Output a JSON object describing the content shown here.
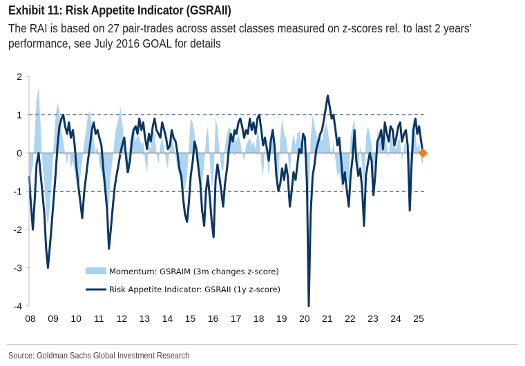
{
  "header": {
    "title": "Exhibit 11: Risk Appetite Indicator (GSRAII)",
    "subtitle_lines": [
      "The RAI is based on 27 pair-trades across asset classes measured on z-scores rel. to last 2 years’",
      "performance, see July 2016 GOAL for details"
    ]
  },
  "footer": {
    "source": "Source: Goldman Sachs Global Investment Research"
  },
  "colors": {
    "rai_line": "#0b3562",
    "momentum_fill": "#a9d2ef",
    "latest_marker": "#f47c20",
    "reference_dash": "#3f6b8f",
    "zero_line": "#9a9a9a",
    "axis": "#bdbdbd"
  },
  "chart_data": {
    "type": "line",
    "title": "Exhibit 11: Risk Appetite Indicator (GSRAII)",
    "xlabel": "",
    "ylabel": "",
    "ylim": [
      -4,
      2
    ],
    "xlim": [
      2008.0,
      2025.3
    ],
    "yticks": [
      "2",
      "1",
      "0",
      "-1",
      "-2",
      "-3",
      "-4"
    ],
    "ytick_values": [
      2,
      1,
      0,
      -1,
      -2,
      -3,
      -4
    ],
    "xticks": [
      "08",
      "09",
      "10",
      "11",
      "12",
      "13",
      "14",
      "15",
      "16",
      "17",
      "18",
      "19",
      "20",
      "21",
      "22",
      "23",
      "24",
      "25"
    ],
    "xtick_values": [
      2008,
      2009,
      2010,
      2011,
      2012,
      2013,
      2014,
      2015,
      2016,
      2017,
      2018,
      2019,
      2020,
      2021,
      2022,
      2023,
      2024,
      2025
    ],
    "reference_lines": [
      1,
      -1
    ],
    "zero_line": 0,
    "grid": false,
    "legend": {
      "placement": "bottom-center",
      "entries": [
        {
          "label": "Momentum: GSRAIM (3m changes z-score)",
          "kind": "area"
        },
        {
          "label": "Risk Appetite Indicator: GSRAII (1y z-score)",
          "kind": "line"
        }
      ]
    },
    "latest_point": {
      "x": 2025.25,
      "y": 0.0,
      "marker": "diamond"
    },
    "series": [
      {
        "name": "Risk Appetite Indicator: GSRAII (1y z-score)",
        "kind": "line",
        "x": [
          2008.0,
          2008.08,
          2008.17,
          2008.25,
          2008.33,
          2008.42,
          2008.5,
          2008.58,
          2008.67,
          2008.75,
          2008.83,
          2008.92,
          2009.0,
          2009.08,
          2009.17,
          2009.25,
          2009.33,
          2009.42,
          2009.5,
          2009.58,
          2009.67,
          2009.75,
          2009.83,
          2009.92,
          2010.0,
          2010.08,
          2010.17,
          2010.25,
          2010.33,
          2010.42,
          2010.5,
          2010.58,
          2010.67,
          2010.75,
          2010.83,
          2010.92,
          2011.0,
          2011.08,
          2011.17,
          2011.25,
          2011.33,
          2011.42,
          2011.5,
          2011.58,
          2011.67,
          2011.75,
          2011.83,
          2011.92,
          2012.0,
          2012.08,
          2012.17,
          2012.25,
          2012.33,
          2012.42,
          2012.5,
          2012.58,
          2012.67,
          2012.75,
          2012.83,
          2012.92,
          2013.0,
          2013.08,
          2013.17,
          2013.25,
          2013.33,
          2013.42,
          2013.5,
          2013.58,
          2013.67,
          2013.75,
          2013.83,
          2013.92,
          2014.0,
          2014.08,
          2014.17,
          2014.25,
          2014.33,
          2014.42,
          2014.5,
          2014.58,
          2014.67,
          2014.75,
          2014.83,
          2014.92,
          2015.0,
          2015.08,
          2015.17,
          2015.25,
          2015.33,
          2015.42,
          2015.5,
          2015.58,
          2015.67,
          2015.75,
          2015.83,
          2015.92,
          2016.0,
          2016.08,
          2016.17,
          2016.25,
          2016.33,
          2016.42,
          2016.5,
          2016.58,
          2016.67,
          2016.75,
          2016.83,
          2016.92,
          2017.0,
          2017.08,
          2017.17,
          2017.25,
          2017.33,
          2017.42,
          2017.5,
          2017.58,
          2017.67,
          2017.75,
          2017.83,
          2017.92,
          2018.0,
          2018.08,
          2018.17,
          2018.25,
          2018.33,
          2018.42,
          2018.5,
          2018.58,
          2018.67,
          2018.75,
          2018.83,
          2018.92,
          2019.0,
          2019.08,
          2019.17,
          2019.25,
          2019.33,
          2019.42,
          2019.5,
          2019.58,
          2019.67,
          2019.75,
          2019.83,
          2019.92,
          2020.0,
          2020.08,
          2020.17,
          2020.25,
          2020.33,
          2020.42,
          2020.5,
          2020.58,
          2020.67,
          2020.75,
          2020.83,
          2020.92,
          2021.0,
          2021.08,
          2021.17,
          2021.25,
          2021.33,
          2021.42,
          2021.5,
          2021.58,
          2021.67,
          2021.75,
          2021.83,
          2021.92,
          2022.0,
          2022.08,
          2022.17,
          2022.25,
          2022.33,
          2022.42,
          2022.5,
          2022.58,
          2022.67,
          2022.75,
          2022.83,
          2022.92,
          2023.0,
          2023.08,
          2023.17,
          2023.25,
          2023.33,
          2023.42,
          2023.5,
          2023.58,
          2023.67,
          2023.75,
          2023.83,
          2023.92,
          2024.0,
          2024.08,
          2024.17,
          2024.25,
          2024.33,
          2024.42,
          2024.5,
          2024.58,
          2024.67,
          2024.75,
          2024.83,
          2024.92,
          2025.0,
          2025.08,
          2025.17,
          2025.25
        ],
        "y": [
          -0.6,
          -1.3,
          -2.0,
          -1.2,
          -0.3,
          0.0,
          -0.5,
          -1.0,
          -1.6,
          -2.5,
          -3.0,
          -2.4,
          -1.8,
          -1.2,
          -0.5,
          0.2,
          0.7,
          0.9,
          1.0,
          0.7,
          0.5,
          0.8,
          0.4,
          0.6,
          0.2,
          -0.4,
          -0.9,
          -1.3,
          -1.7,
          -1.0,
          -0.6,
          -0.2,
          0.2,
          0.6,
          0.8,
          0.5,
          0.6,
          0.4,
          0.2,
          -0.4,
          -0.9,
          -1.5,
          -2.5,
          -2.0,
          -1.4,
          -0.9,
          -0.6,
          -0.3,
          0.0,
          0.2,
          0.4,
          -0.1,
          -0.5,
          -0.2,
          0.3,
          0.6,
          0.7,
          0.5,
          0.9,
          0.6,
          0.8,
          0.4,
          0.1,
          0.5,
          0.3,
          0.7,
          0.9,
          0.6,
          0.5,
          0.4,
          0.8,
          0.6,
          0.4,
          0.1,
          0.2,
          0.6,
          0.4,
          0.3,
          0.0,
          -0.4,
          -0.6,
          -1.2,
          -1.6,
          -1.8,
          -1.3,
          -0.6,
          -0.2,
          0.3,
          0.1,
          -0.4,
          -0.8,
          -1.5,
          -1.9,
          -1.0,
          -0.6,
          -1.2,
          -1.8,
          -2.2,
          -0.7,
          -0.3,
          -0.6,
          -1.0,
          -1.4,
          -0.8,
          -0.4,
          0.1,
          0.5,
          0.3,
          0.6,
          0.5,
          0.8,
          0.9,
          0.7,
          0.4,
          0.6,
          0.5,
          0.9,
          0.6,
          0.8,
          0.5,
          0.9,
          1.0,
          0.6,
          0.2,
          0.4,
          0.1,
          -0.2,
          0.3,
          0.6,
          0.2,
          -0.6,
          -1.0,
          -0.8,
          -0.4,
          -0.7,
          -0.3,
          -0.6,
          -1.4,
          -1.0,
          -0.5,
          -0.7,
          -0.3,
          0.1,
          0.0,
          0.5,
          0.4,
          -0.8,
          -4.0,
          -1.6,
          -0.6,
          -0.3,
          0.1,
          0.3,
          0.5,
          0.6,
          0.9,
          1.2,
          1.5,
          1.2,
          0.9,
          1.0,
          0.6,
          0.2,
          0.4,
          -0.2,
          -0.8,
          -0.5,
          -1.0,
          -1.4,
          -0.6,
          -0.1,
          0.6,
          -0.2,
          -0.6,
          -0.4,
          -0.9,
          -1.9,
          -0.6,
          -0.3,
          0.0,
          -0.2,
          -1.1,
          -0.5,
          0.3,
          0.4,
          0.6,
          0.1,
          0.8,
          0.5,
          0.3,
          0.7,
          0.6,
          0.2,
          0.4,
          0.7,
          0.8,
          0.3,
          0.5,
          0.6,
          0.2,
          -1.5,
          -0.3,
          0.6,
          0.9,
          0.5,
          0.7,
          0.3,
          0.0
        ]
      },
      {
        "name": "Momentum: GSRAIM (3m changes z-score)",
        "kind": "area",
        "x": [
          2008.0,
          2008.08,
          2008.17,
          2008.25,
          2008.33,
          2008.42,
          2008.5,
          2008.58,
          2008.67,
          2008.75,
          2008.83,
          2008.92,
          2009.0,
          2009.08,
          2009.17,
          2009.25,
          2009.33,
          2009.42,
          2009.5,
          2009.58,
          2009.67,
          2009.75,
          2009.83,
          2009.92,
          2010.0,
          2010.08,
          2010.17,
          2010.25,
          2010.33,
          2010.42,
          2010.5,
          2010.58,
          2010.67,
          2010.75,
          2010.83,
          2010.92,
          2011.0,
          2011.08,
          2011.17,
          2011.25,
          2011.33,
          2011.42,
          2011.5,
          2011.58,
          2011.67,
          2011.75,
          2011.83,
          2011.92,
          2012.0,
          2012.08,
          2012.17,
          2012.25,
          2012.33,
          2012.42,
          2012.5,
          2012.58,
          2012.67,
          2012.75,
          2012.83,
          2012.92,
          2013.0,
          2013.08,
          2013.17,
          2013.25,
          2013.33,
          2013.42,
          2013.5,
          2013.58,
          2013.67,
          2013.75,
          2013.83,
          2013.92,
          2014.0,
          2014.08,
          2014.17,
          2014.25,
          2014.33,
          2014.42,
          2014.5,
          2014.58,
          2014.67,
          2014.75,
          2014.83,
          2014.92,
          2015.0,
          2015.08,
          2015.17,
          2015.25,
          2015.33,
          2015.42,
          2015.5,
          2015.58,
          2015.67,
          2015.75,
          2015.83,
          2015.92,
          2016.0,
          2016.08,
          2016.17,
          2016.25,
          2016.33,
          2016.42,
          2016.5,
          2016.58,
          2016.67,
          2016.75,
          2016.83,
          2016.92,
          2017.0,
          2017.08,
          2017.17,
          2017.25,
          2017.33,
          2017.42,
          2017.5,
          2017.58,
          2017.67,
          2017.75,
          2017.83,
          2017.92,
          2018.0,
          2018.08,
          2018.17,
          2018.25,
          2018.33,
          2018.42,
          2018.5,
          2018.58,
          2018.67,
          2018.75,
          2018.83,
          2018.92,
          2019.0,
          2019.08,
          2019.17,
          2019.25,
          2019.33,
          2019.42,
          2019.5,
          2019.58,
          2019.67,
          2019.75,
          2019.83,
          2019.92,
          2020.0,
          2020.08,
          2020.17,
          2020.25,
          2020.33,
          2020.42,
          2020.5,
          2020.58,
          2020.67,
          2020.75,
          2020.83,
          2020.92,
          2021.0,
          2021.08,
          2021.17,
          2021.25,
          2021.33,
          2021.42,
          2021.5,
          2021.58,
          2021.67,
          2021.75,
          2021.83,
          2021.92,
          2022.0,
          2022.08,
          2022.17,
          2022.25,
          2022.33,
          2022.42,
          2022.5,
          2022.58,
          2022.67,
          2022.75,
          2022.83,
          2022.92,
          2023.0,
          2023.08,
          2023.17,
          2023.25,
          2023.33,
          2023.42,
          2023.5,
          2023.58,
          2023.67,
          2023.75,
          2023.83,
          2023.92,
          2024.0,
          2024.08,
          2024.17,
          2024.25,
          2024.33,
          2024.42,
          2024.5,
          2024.58,
          2024.67,
          2024.75,
          2024.83,
          2024.92,
          2025.0,
          2025.08,
          2025.17,
          2025.25
        ],
        "y": [
          -0.8,
          -0.6,
          -0.3,
          0.5,
          1.4,
          1.7,
          0.8,
          -0.2,
          -0.8,
          -1.6,
          -1.9,
          -1.4,
          -0.6,
          0.2,
          1.0,
          1.3,
          1.1,
          0.6,
          0.3,
          0.0,
          -0.3,
          0.1,
          -0.4,
          -0.2,
          -0.5,
          -0.8,
          -1.0,
          -0.6,
          -0.2,
          0.3,
          0.6,
          1.0,
          1.1,
          0.7,
          0.4,
          0.0,
          0.2,
          -0.3,
          -0.5,
          -0.7,
          -1.2,
          -1.6,
          -1.3,
          -0.6,
          -0.1,
          0.4,
          0.7,
          0.9,
          1.2,
          0.8,
          0.2,
          -0.6,
          -0.4,
          0.3,
          0.6,
          0.7,
          0.3,
          0.5,
          0.4,
          0.2,
          0.3,
          -0.2,
          -0.5,
          0.2,
          0.1,
          0.6,
          0.5,
          0.0,
          -0.3,
          0.2,
          0.4,
          0.1,
          -0.2,
          -0.4,
          0.3,
          0.5,
          0.2,
          -0.1,
          -0.4,
          -0.6,
          -0.8,
          -1.0,
          -0.9,
          -0.6,
          0.2,
          0.9,
          0.8,
          0.5,
          -0.2,
          -0.6,
          -0.9,
          -0.8,
          -0.3,
          0.4,
          0.7,
          -0.2,
          -0.9,
          -0.6,
          0.9,
          0.7,
          0.1,
          -0.4,
          -0.5,
          0.2,
          0.5,
          0.7,
          0.6,
          0.2,
          0.4,
          0.3,
          0.5,
          0.3,
          0.0,
          -0.2,
          0.2,
          0.3,
          0.4,
          0.2,
          0.3,
          0.1,
          0.6,
          0.4,
          -0.3,
          -0.6,
          0.2,
          -0.2,
          -0.6,
          0.4,
          0.7,
          0.0,
          -0.9,
          -0.7,
          0.4,
          0.9,
          0.5,
          0.4,
          0.0,
          -0.6,
          0.2,
          0.5,
          0.2,
          0.5,
          0.6,
          0.3,
          0.3,
          -0.2,
          -1.6,
          -1.2,
          0.4,
          1.0,
          0.7,
          0.5,
          0.3,
          0.4,
          0.3,
          0.6,
          0.8,
          0.6,
          0.2,
          -0.1,
          0.3,
          -0.2,
          -0.6,
          -0.5,
          -0.8,
          -1.0,
          -0.5,
          -0.6,
          -0.8,
          0.4,
          0.7,
          0.9,
          -0.3,
          -0.4,
          0.2,
          -0.3,
          -0.9,
          0.4,
          0.7,
          0.5,
          0.2,
          -0.6,
          -0.1,
          0.6,
          0.3,
          0.4,
          0.1,
          0.5,
          0.2,
          -0.1,
          0.5,
          0.3,
          0.2,
          0.1,
          0.4,
          0.3,
          -0.2,
          0.2,
          0.3,
          -0.3,
          -1.0,
          0.6,
          0.9,
          0.5,
          0.1,
          0.3,
          -0.2,
          -0.3
        ]
      }
    ]
  }
}
